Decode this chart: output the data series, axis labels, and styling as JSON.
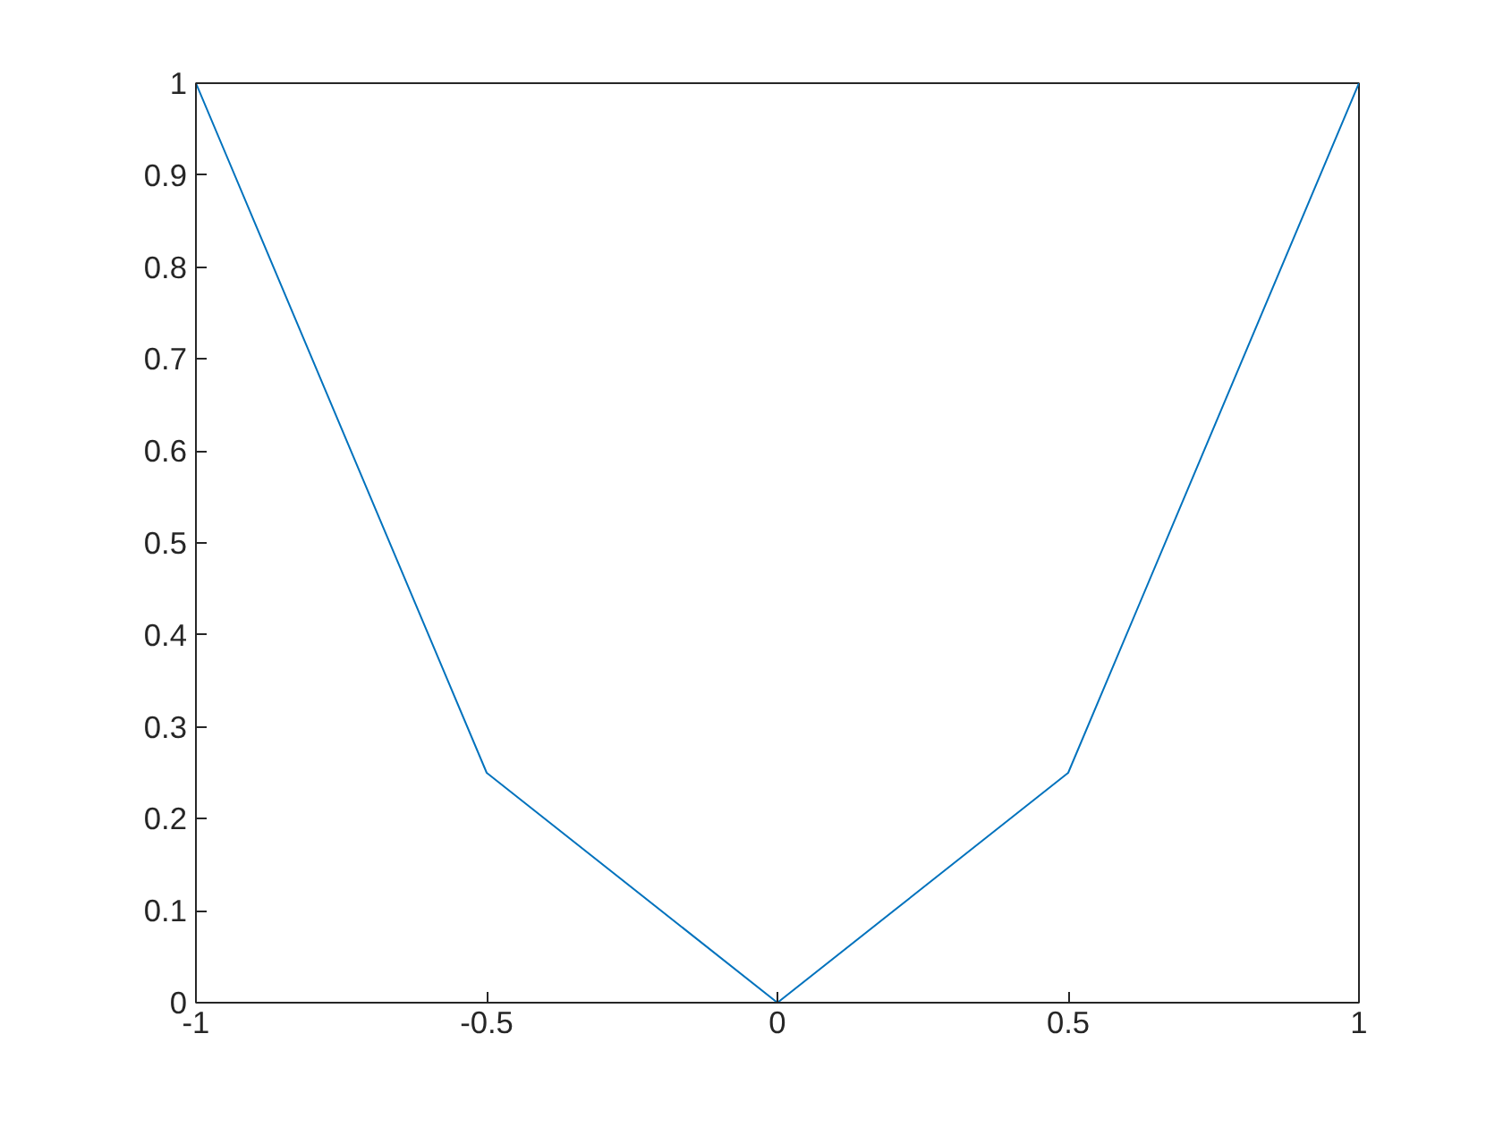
{
  "chart_data": {
    "type": "line",
    "x": [
      -1,
      -0.5,
      0,
      0.5,
      1
    ],
    "series": [
      {
        "color": "#0072bd",
        "values": [
          1,
          0.25,
          0,
          0.25,
          1
        ]
      }
    ],
    "xlim": [
      -1,
      1
    ],
    "xticks": [
      -1,
      -0.5,
      0,
      0.5,
      1
    ],
    "ylim": [
      0,
      1
    ],
    "yticks": [
      0,
      0.1,
      0.2,
      0.3,
      0.4,
      0.5,
      0.6,
      0.7,
      0.8,
      0.9,
      1
    ],
    "grid": false,
    "marker": "none",
    "line_style": "solid"
  }
}
